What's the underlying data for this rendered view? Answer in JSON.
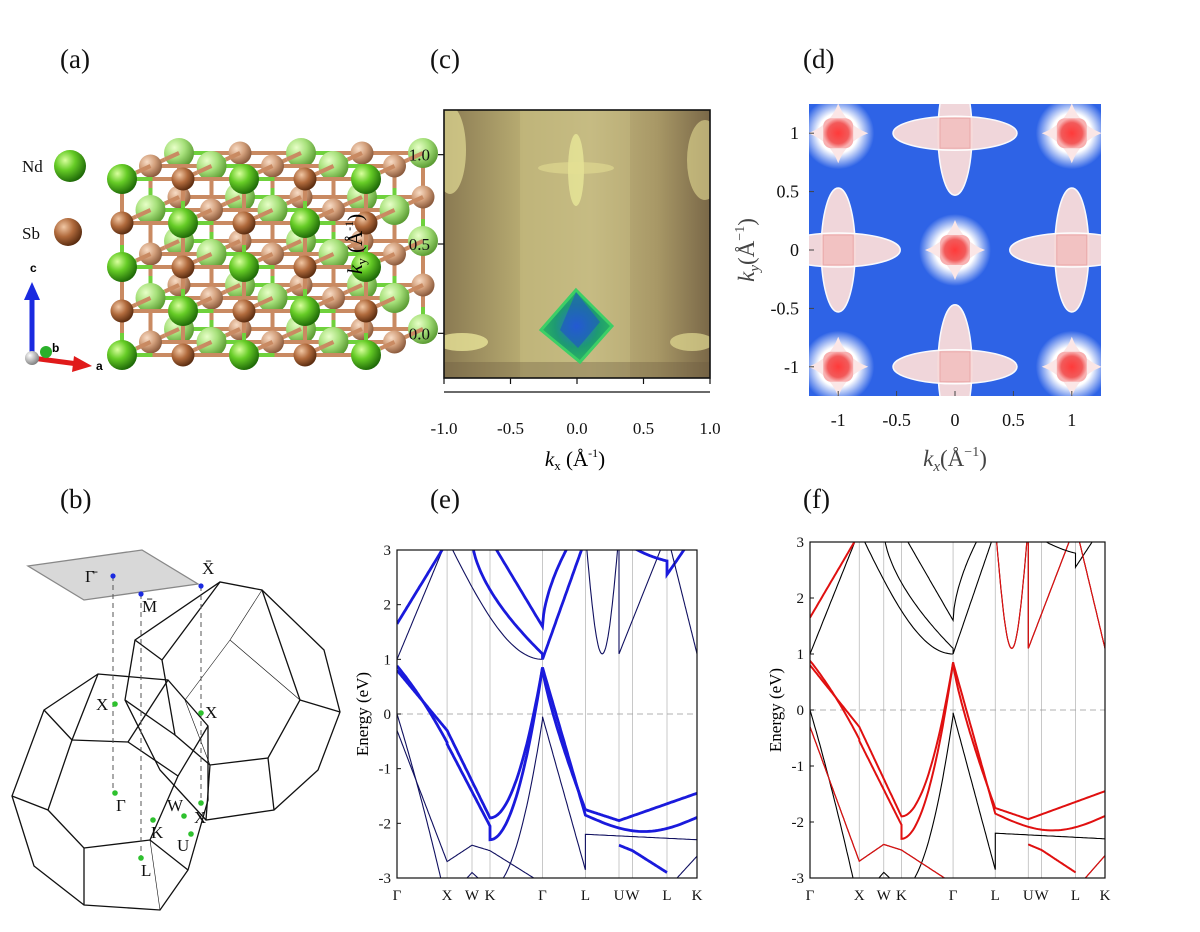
{
  "panels": {
    "a": "(a)",
    "b": "(b)",
    "c": "(c)",
    "d": "(d)",
    "e": "(e)",
    "f": "(f)"
  },
  "panel_a": {
    "legend": [
      "Nd",
      "Sb"
    ],
    "axes": [
      "c",
      "b",
      "a"
    ],
    "colors": {
      "Nd": "#5ec22b",
      "Sb": "#b8724a"
    }
  },
  "panel_b": {
    "points": [
      "Γ̄",
      "X̄",
      "M̄",
      "X",
      "X",
      "Γ",
      "W",
      "K",
      "X",
      "U",
      "L"
    ]
  },
  "chart_data": [
    {
      "type": "heatmap",
      "panel": "c",
      "xlabel": "k",
      "xlabel_sub": "x",
      "xlabel_unit": " (Å",
      "xlabel_sup": "-1",
      "xlabel_close": ")",
      "ylabel": "k",
      "ylabel_sub": "y",
      "ylabel_unit": " (Å",
      "ylabel_sup": "-1",
      "ylabel_close": ")",
      "xlim": [
        -1.0,
        1.0
      ],
      "ylim": [
        -0.25,
        1.25
      ],
      "xticks": [
        -1.0,
        -0.5,
        0.0,
        0.5,
        1.0
      ],
      "xticklabels": [
        "-1.0",
        "-0.5",
        "0.0",
        "0.5",
        "1.0"
      ],
      "yticks": [
        0.0,
        0.5,
        1.0
      ],
      "yticklabels": [
        "0.0",
        "0.5",
        "1.0"
      ]
    },
    {
      "type": "heatmap",
      "panel": "d",
      "xlabel": "k",
      "xlabel_sub": "x",
      "xlabel_unit": "(Å",
      "xlabel_sup": "−1",
      "xlabel_close": ")",
      "ylabel": "k",
      "ylabel_sub": "y",
      "ylabel_unit": "(Å",
      "ylabel_sup": "−1",
      "ylabel_close": ")",
      "xlim": [
        -1.25,
        1.25
      ],
      "ylim": [
        -1.25,
        1.25
      ],
      "xticks": [
        -1,
        -0.5,
        0,
        0.5,
        1
      ],
      "xticklabels": [
        "-1",
        "-0.5",
        "0",
        "0.5",
        "1"
      ],
      "yticks": [
        -1,
        -0.5,
        0,
        0.5,
        1
      ],
      "yticklabels": [
        "-1",
        "-0.5",
        "0",
        "0.5",
        "1"
      ],
      "pockets": [
        {
          "kx": -1,
          "ky": 1,
          "type": "hole"
        },
        {
          "kx": 0,
          "ky": 1,
          "type": "cross"
        },
        {
          "kx": 1,
          "ky": 1,
          "type": "hole"
        },
        {
          "kx": -1,
          "ky": 0,
          "type": "cross"
        },
        {
          "kx": 0,
          "ky": 0,
          "type": "hole"
        },
        {
          "kx": 1,
          "ky": 0,
          "type": "cross"
        },
        {
          "kx": -1,
          "ky": -1,
          "type": "hole"
        },
        {
          "kx": 0,
          "ky": -1,
          "type": "cross"
        },
        {
          "kx": 1,
          "ky": -1,
          "type": "hole"
        }
      ]
    },
    {
      "type": "line",
      "panel": "e",
      "ylabel": "Energy (eV)",
      "ylim": [
        -3,
        3
      ],
      "yticks": [
        -3,
        -2,
        -1,
        0,
        1,
        2,
        3
      ],
      "yticklabels": [
        "-3",
        "-2",
        "-1",
        "0",
        "1",
        "2",
        "3"
      ],
      "kpath": [
        "Γ",
        "X",
        "W",
        "K",
        "Γ",
        "L",
        "U",
        "W",
        "L",
        "K"
      ],
      "kpos": [
        0,
        0.167,
        0.25,
        0.31,
        0.485,
        0.628,
        0.74,
        0.785,
        0.9,
        1.0
      ],
      "colors": {
        "bands": "#1a1adc",
        "thin": "#101060"
      }
    },
    {
      "type": "line",
      "panel": "f",
      "ylabel": "Energy (eV)",
      "ylim": [
        -3,
        3
      ],
      "yticks": [
        -3,
        -2,
        -1,
        0,
        1,
        2,
        3
      ],
      "yticklabels": [
        "-3",
        "-2",
        "-1",
        "0",
        "1",
        "2",
        "3"
      ],
      "kpath": [
        "Γ",
        "X",
        "W",
        "K",
        "Γ",
        "L",
        "U",
        "W",
        "L",
        "K"
      ],
      "kpos": [
        0,
        0.167,
        0.25,
        0.31,
        0.485,
        0.628,
        0.74,
        0.785,
        0.9,
        1.0
      ],
      "colors": {
        "bands": "#000000",
        "proj": "#e01010"
      }
    }
  ]
}
